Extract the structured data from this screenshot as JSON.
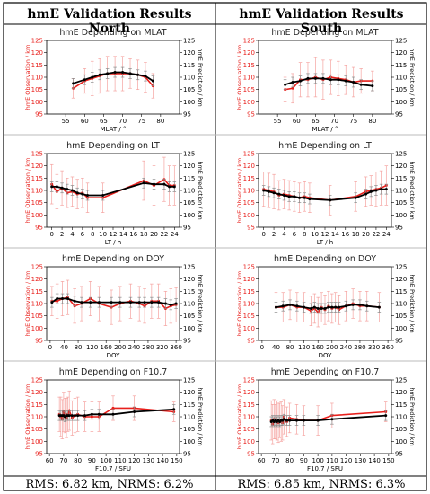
{
  "columns": [
    {
      "header": "hmE Validation Results North",
      "footer": "RMS: 6.82 km, NRMS: 6.2%"
    },
    {
      "header": "hmE Validation Results South",
      "footer": "RMS: 6.85 km, NRMS: 6.3%"
    }
  ],
  "colors": {
    "observation": "#e8201c",
    "prediction": "#000000",
    "errorbar_obs": "#f5a3a0",
    "errorbar_pred": "#8c8c8c"
  },
  "chart_data": [
    {
      "type": "line",
      "panel": "north-mlat",
      "title": "hmE Depending on MLAT",
      "xlabel": "MLAT / °",
      "ylabel_left": "hmE Observation / km",
      "ylabel_right": "hmE Prediction / km",
      "xlim": [
        50,
        85
      ],
      "ylim": [
        95,
        125
      ],
      "xticks": [
        55,
        60,
        65,
        70,
        75,
        80
      ],
      "yticks": [
        95,
        100,
        105,
        110,
        115,
        120,
        125
      ],
      "x": [
        57,
        60,
        62,
        64,
        66,
        68,
        70,
        72,
        74,
        76,
        78
      ],
      "series": [
        {
          "role": "observation",
          "values": [
            105.5,
            108.5,
            109.5,
            110.5,
            111.5,
            111.5,
            111.5,
            111.5,
            111.0,
            110.0,
            106.5
          ],
          "err": [
            4,
            5,
            7,
            7,
            7,
            7,
            7,
            6,
            6,
            6,
            5
          ]
        },
        {
          "role": "prediction",
          "values": [
            107.5,
            109.0,
            110.0,
            111.0,
            111.5,
            112.0,
            112.0,
            111.5,
            111.0,
            110.5,
            108.5
          ],
          "err": [
            2,
            2,
            2,
            2,
            2,
            2,
            2,
            2,
            2,
            2,
            2
          ]
        }
      ]
    },
    {
      "type": "line",
      "panel": "south-mlat",
      "title": "hmE Depending on MLAT",
      "xlabel": "MLAT / °",
      "ylabel_left": "hmE Observation / km",
      "ylabel_right": "hmE Prediction / km",
      "xlim": [
        50,
        85
      ],
      "ylim": [
        95,
        125
      ],
      "xticks": [
        55,
        60,
        65,
        70,
        75,
        80
      ],
      "yticks": [
        95,
        100,
        105,
        110,
        115,
        120,
        125
      ],
      "x": [
        57,
        59,
        61,
        63,
        65,
        67,
        69,
        71,
        73,
        75,
        77,
        80
      ],
      "series": [
        {
          "role": "observation",
          "values": [
            105.0,
            105.5,
            109.0,
            109.0,
            110.0,
            109.0,
            110.0,
            109.5,
            109.0,
            108.0,
            108.5,
            108.5
          ],
          "err": [
            5,
            6,
            7,
            7,
            8,
            8,
            7,
            7,
            6,
            6,
            5,
            4
          ]
        },
        {
          "role": "prediction",
          "values": [
            107.0,
            108.0,
            108.5,
            109.5,
            109.5,
            109.5,
            109.0,
            109.0,
            108.5,
            108.0,
            107.0,
            106.5
          ],
          "err": [
            2,
            2,
            2,
            2,
            2,
            2,
            2,
            2,
            2,
            2,
            2,
            2
          ]
        }
      ]
    },
    {
      "type": "line",
      "panel": "north-lt",
      "title": "hmE Depending on LT",
      "xlabel": "LT / h",
      "ylabel_left": "hmE Observation / km",
      "ylabel_right": "hmE Prediction / km",
      "xlim": [
        -1,
        25
      ],
      "ylim": [
        95,
        125
      ],
      "xticks": [
        0,
        2,
        4,
        6,
        8,
        10,
        12,
        14,
        16,
        18,
        20,
        22,
        24
      ],
      "yticks": [
        95,
        100,
        105,
        110,
        115,
        120,
        125
      ],
      "x": [
        0,
        1,
        2,
        3,
        4,
        5,
        6,
        7,
        10,
        18,
        20,
        22,
        23,
        24
      ],
      "series": [
        {
          "role": "observation",
          "values": [
            112.5,
            109.5,
            111.0,
            109.0,
            109.5,
            108.5,
            109.0,
            107.0,
            107.0,
            114.0,
            112.0,
            114.5,
            112.0,
            112.0
          ],
          "err": [
            8,
            7,
            7,
            6,
            6,
            6,
            6,
            6,
            6,
            8,
            8,
            9,
            8,
            8
          ]
        },
        {
          "role": "prediction",
          "values": [
            111.5,
            111.5,
            111.0,
            110.5,
            110.0,
            109.0,
            108.5,
            108.0,
            108.0,
            113.0,
            112.5,
            112.5,
            111.5,
            111.5
          ],
          "err": [
            2,
            2,
            2,
            2,
            2,
            2,
            2,
            2,
            2,
            2,
            2,
            2,
            2,
            2
          ]
        }
      ]
    },
    {
      "type": "line",
      "panel": "south-lt",
      "title": "hmE Depending on LT",
      "xlabel": "LT / h",
      "ylabel_left": "hmE Observation / km",
      "ylabel_right": "hmE Prediction / km",
      "xlim": [
        -1,
        25
      ],
      "ylim": [
        95,
        125
      ],
      "xticks": [
        0,
        2,
        4,
        6,
        8,
        10,
        12,
        14,
        16,
        18,
        20,
        22,
        24
      ],
      "yticks": [
        95,
        100,
        105,
        110,
        115,
        120,
        125
      ],
      "x": [
        0,
        1,
        2,
        3,
        4,
        5,
        6,
        7,
        8,
        9,
        13,
        18,
        20,
        21,
        22,
        23,
        24
      ],
      "series": [
        {
          "role": "observation",
          "values": [
            110.5,
            110.0,
            109.5,
            108.0,
            108.5,
            108.0,
            107.5,
            107.0,
            107.5,
            107.0,
            106.0,
            107.5,
            109.5,
            110.0,
            110.5,
            111.0,
            112.0
          ],
          "err": [
            7,
            7,
            7,
            6,
            6,
            6,
            6,
            6,
            6,
            6,
            6,
            6,
            6,
            6,
            7,
            7,
            8
          ]
        },
        {
          "role": "prediction",
          "values": [
            110.0,
            109.5,
            109.0,
            108.5,
            108.0,
            107.5,
            107.5,
            107.0,
            107.0,
            106.5,
            106.0,
            107.0,
            108.5,
            109.5,
            110.0,
            110.5,
            110.5
          ],
          "err": [
            2,
            2,
            2,
            2,
            2,
            2,
            2,
            2,
            2,
            2,
            2,
            2,
            2,
            2,
            2,
            2,
            2
          ]
        }
      ]
    },
    {
      "type": "line",
      "panel": "north-doy",
      "title": "hmE Depending on DOY",
      "xlabel": "DOY",
      "ylabel_left": "hmE Observation / km",
      "ylabel_right": "hmE Prediction / km",
      "xlim": [
        -10,
        370
      ],
      "ylim": [
        95,
        125
      ],
      "xticks": [
        0,
        40,
        80,
        120,
        160,
        200,
        240,
        280,
        320,
        360
      ],
      "yticks": [
        95,
        100,
        105,
        110,
        115,
        120,
        125
      ],
      "x": [
        5,
        20,
        35,
        50,
        70,
        90,
        115,
        140,
        175,
        200,
        230,
        255,
        270,
        290,
        310,
        330,
        345,
        360
      ],
      "series": [
        {
          "role": "observation",
          "values": [
            111.0,
            111.0,
            112.0,
            112.5,
            109.0,
            110.0,
            112.0,
            110.0,
            108.5,
            110.0,
            111.0,
            110.0,
            109.0,
            111.0,
            111.0,
            108.0,
            109.0,
            109.5
          ],
          "err": [
            6,
            7,
            7,
            7,
            7,
            7,
            7,
            7,
            7,
            7,
            7,
            7,
            7,
            7,
            7,
            7,
            7,
            7
          ]
        },
        {
          "role": "prediction",
          "values": [
            110.5,
            112.0,
            112.0,
            112.0,
            111.0,
            110.5,
            110.5,
            110.5,
            110.5,
            110.5,
            110.5,
            110.5,
            110.5,
            110.5,
            110.5,
            110.0,
            109.5,
            110.0
          ],
          "err": [
            2,
            2,
            2,
            2,
            2,
            2,
            2,
            2,
            2,
            2,
            2,
            2,
            2,
            2,
            2,
            2,
            2,
            2
          ]
        }
      ]
    },
    {
      "type": "line",
      "panel": "south-doy",
      "title": "hmE Depending on DOY",
      "xlabel": "DOY",
      "ylabel_left": "hmE Observation / km",
      "ylabel_right": "hmE Prediction / km",
      "xlim": [
        -10,
        370
      ],
      "ylim": [
        95,
        125
      ],
      "xticks": [
        0,
        40,
        80,
        120,
        160,
        200,
        240,
        280,
        320,
        360
      ],
      "yticks": [
        95,
        100,
        105,
        110,
        115,
        120,
        125
      ],
      "x": [
        40,
        60,
        80,
        100,
        120,
        140,
        150,
        160,
        170,
        180,
        190,
        200,
        210,
        220,
        240,
        260,
        280,
        300,
        335
      ],
      "series": [
        {
          "role": "observation",
          "values": [
            108.5,
            108.5,
            109.5,
            108.5,
            108.5,
            107.0,
            108.0,
            106.5,
            108.5,
            107.5,
            109.0,
            108.0,
            108.5,
            107.5,
            109.0,
            110.0,
            109.0,
            109.0,
            108.5
          ],
          "err": [
            6,
            6,
            6,
            6,
            6,
            6,
            6,
            6,
            6,
            6,
            6,
            6,
            6,
            6,
            6,
            6,
            6,
            6,
            6
          ]
        },
        {
          "role": "prediction",
          "values": [
            108.5,
            109.0,
            109.5,
            109.0,
            108.5,
            108.0,
            108.5,
            108.0,
            108.0,
            108.0,
            108.5,
            108.5,
            108.5,
            108.5,
            109.0,
            109.5,
            109.5,
            109.0,
            108.5
          ],
          "err": [
            2,
            2,
            2,
            2,
            2,
            2,
            2,
            2,
            2,
            2,
            2,
            2,
            2,
            2,
            2,
            2,
            2,
            2,
            2
          ]
        }
      ]
    },
    {
      "type": "line",
      "panel": "north-f107",
      "title": "hmE Depending on F10.7",
      "xlabel": "F10.7 / SFU",
      "ylabel_left": "hmE Observation / km",
      "ylabel_right": "hmE Prediction / km",
      "xlim": [
        58,
        152
      ],
      "ylim": [
        95,
        125
      ],
      "xticks": [
        60,
        70,
        80,
        90,
        100,
        110,
        120,
        130,
        140,
        150
      ],
      "yticks": [
        95,
        100,
        105,
        110,
        115,
        120,
        125
      ],
      "x": [
        67,
        68,
        69,
        70,
        71,
        72,
        73,
        74,
        76,
        78,
        80,
        85,
        90,
        95,
        105,
        120,
        148
      ],
      "series": [
        {
          "role": "observation",
          "values": [
            111.0,
            110.0,
            109.0,
            112.0,
            110.5,
            109.5,
            111.0,
            112.5,
            109.5,
            110.5,
            111.0,
            110.0,
            110.0,
            110.0,
            113.5,
            113.5,
            112.0
          ],
          "err": [
            7,
            8,
            8,
            8,
            7,
            8,
            7,
            8,
            7,
            7,
            7,
            6,
            6,
            6,
            5,
            5,
            4
          ]
        },
        {
          "role": "prediction",
          "values": [
            110.5,
            110.5,
            110.5,
            110.5,
            110.0,
            110.5,
            110.5,
            110.5,
            110.5,
            110.5,
            110.5,
            110.5,
            111.0,
            111.0,
            111.0,
            112.0,
            113.0
          ],
          "err": [
            2,
            2,
            2,
            2,
            2,
            2,
            2,
            2,
            2,
            2,
            2,
            2,
            2,
            2,
            2,
            2,
            2
          ]
        }
      ]
    },
    {
      "type": "line",
      "panel": "south-f107",
      "title": "hmE Depending on F10.7",
      "xlabel": "F10.7 / SFU",
      "ylabel_left": "hmE Observation / km",
      "ylabel_right": "hmE Prediction / km",
      "xlim": [
        58,
        152
      ],
      "ylim": [
        95,
        125
      ],
      "xticks": [
        60,
        70,
        80,
        90,
        100,
        110,
        120,
        130,
        140,
        150
      ],
      "yticks": [
        95,
        100,
        105,
        110,
        115,
        120,
        125
      ],
      "x": [
        67,
        68,
        69,
        70,
        71,
        72,
        73,
        74,
        75,
        76,
        78,
        80,
        85,
        90,
        100,
        110,
        148
      ],
      "series": [
        {
          "role": "observation",
          "values": [
            108.5,
            107.0,
            109.0,
            108.0,
            108.5,
            107.5,
            108.5,
            108.0,
            107.5,
            110.0,
            108.0,
            109.5,
            109.0,
            108.5,
            108.5,
            110.5,
            112.0
          ],
          "err": [
            8,
            8,
            8,
            7,
            8,
            8,
            7,
            8,
            7,
            7,
            6,
            6,
            6,
            6,
            6,
            5,
            4
          ]
        },
        {
          "role": "prediction",
          "values": [
            108.0,
            108.5,
            108.0,
            108.5,
            108.0,
            108.5,
            108.0,
            108.5,
            108.5,
            109.0,
            108.5,
            108.5,
            108.5,
            108.5,
            108.5,
            109.0,
            110.5
          ],
          "err": [
            2,
            2,
            2,
            2,
            2,
            2,
            2,
            2,
            2,
            2,
            2,
            2,
            2,
            2,
            2,
            2,
            2
          ]
        }
      ]
    }
  ]
}
